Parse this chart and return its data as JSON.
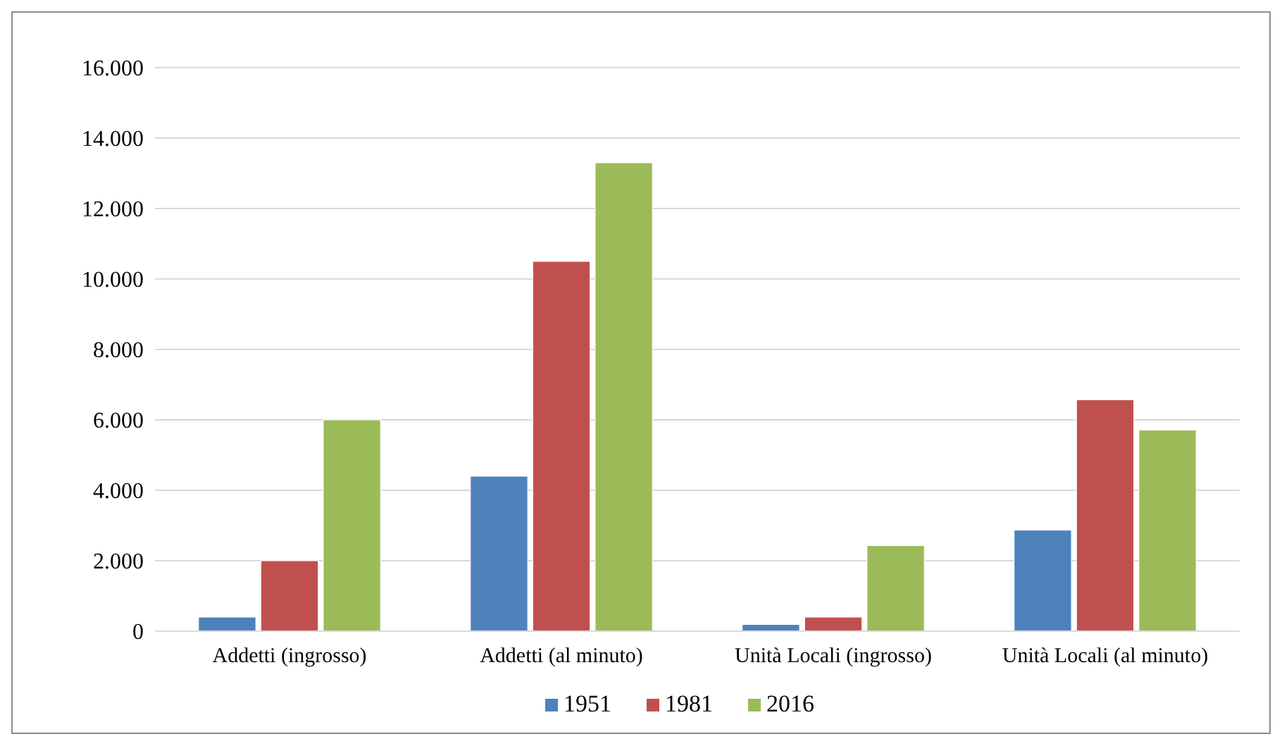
{
  "chart_data": {
    "type": "bar",
    "categories": [
      "Addetti (ingrosso)",
      "Addetti (al minuto)",
      "Unità Locali (ingrosso)",
      "Unità Locali (al minuto)"
    ],
    "series": [
      {
        "name": "1951",
        "color": "#4f81bd",
        "values": [
          400,
          4400,
          190,
          2870
        ]
      },
      {
        "name": "1981",
        "color": "#c0504d",
        "values": [
          2000,
          10500,
          400,
          6570
        ]
      },
      {
        "name": "2016",
        "color": "#9bbb59",
        "values": [
          6000,
          13300,
          2430,
          5710
        ]
      }
    ],
    "ylim": [
      0,
      16000
    ],
    "yticks": [
      {
        "value": 0,
        "label": "0"
      },
      {
        "value": 2000,
        "label": "2.000"
      },
      {
        "value": 4000,
        "label": "4.000"
      },
      {
        "value": 6000,
        "label": "6.000"
      },
      {
        "value": 8000,
        "label": "8.000"
      },
      {
        "value": 10000,
        "label": "10.000"
      },
      {
        "value": 12000,
        "label": "12.000"
      },
      {
        "value": 14000,
        "label": "14.000"
      },
      {
        "value": 16000,
        "label": "16.000"
      }
    ],
    "grid": "y",
    "legend": "bottom"
  }
}
